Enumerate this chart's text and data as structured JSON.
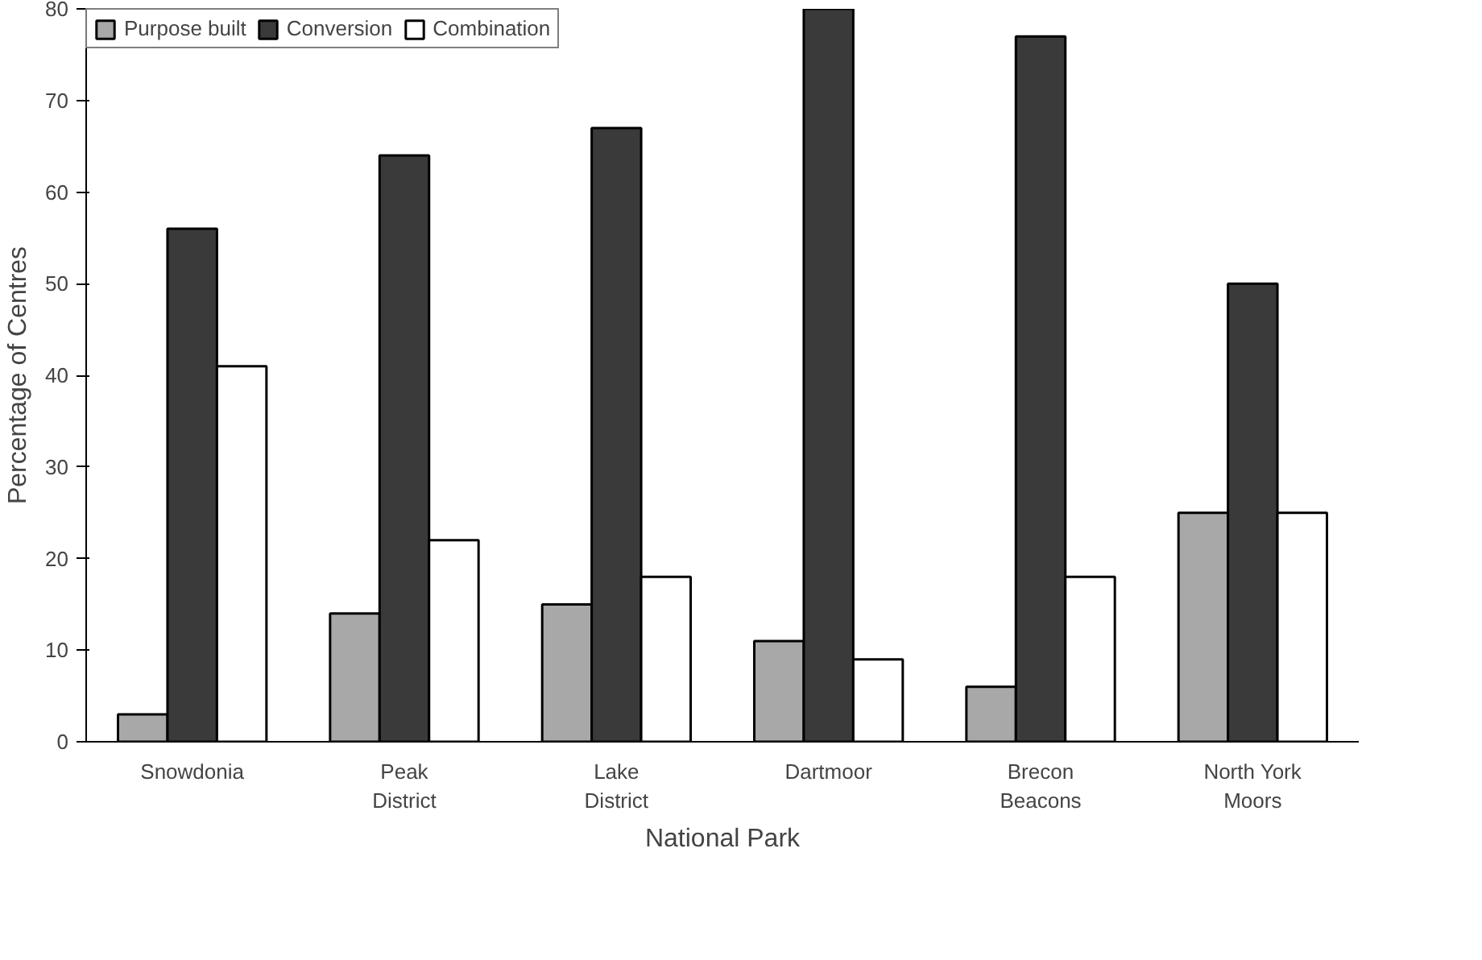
{
  "chart_data": {
    "type": "bar",
    "xlabel": "National Park",
    "ylabel": "Percentage of Centres",
    "categories": [
      "Snowdonia",
      "Peak\nDistrict",
      "Lake\nDistrict",
      "Dartmoor",
      "Brecon\nBeacons",
      "North York\nMoors"
    ],
    "series": [
      {
        "name": "Purpose built",
        "color": "#a8a8a8",
        "values": [
          3,
          14,
          15,
          11,
          6,
          25
        ]
      },
      {
        "name": "Conversion",
        "color": "#3a3a3a",
        "values": [
          56,
          64,
          67,
          80,
          77,
          50
        ]
      },
      {
        "name": "Combination",
        "color": "#ffffff",
        "values": [
          41,
          22,
          18,
          9,
          18,
          25
        ]
      }
    ],
    "ylim": [
      0,
      80
    ],
    "yticks": [
      0,
      10,
      20,
      30,
      40,
      50,
      60,
      70,
      80
    ],
    "grid": false,
    "legend": "top left"
  }
}
